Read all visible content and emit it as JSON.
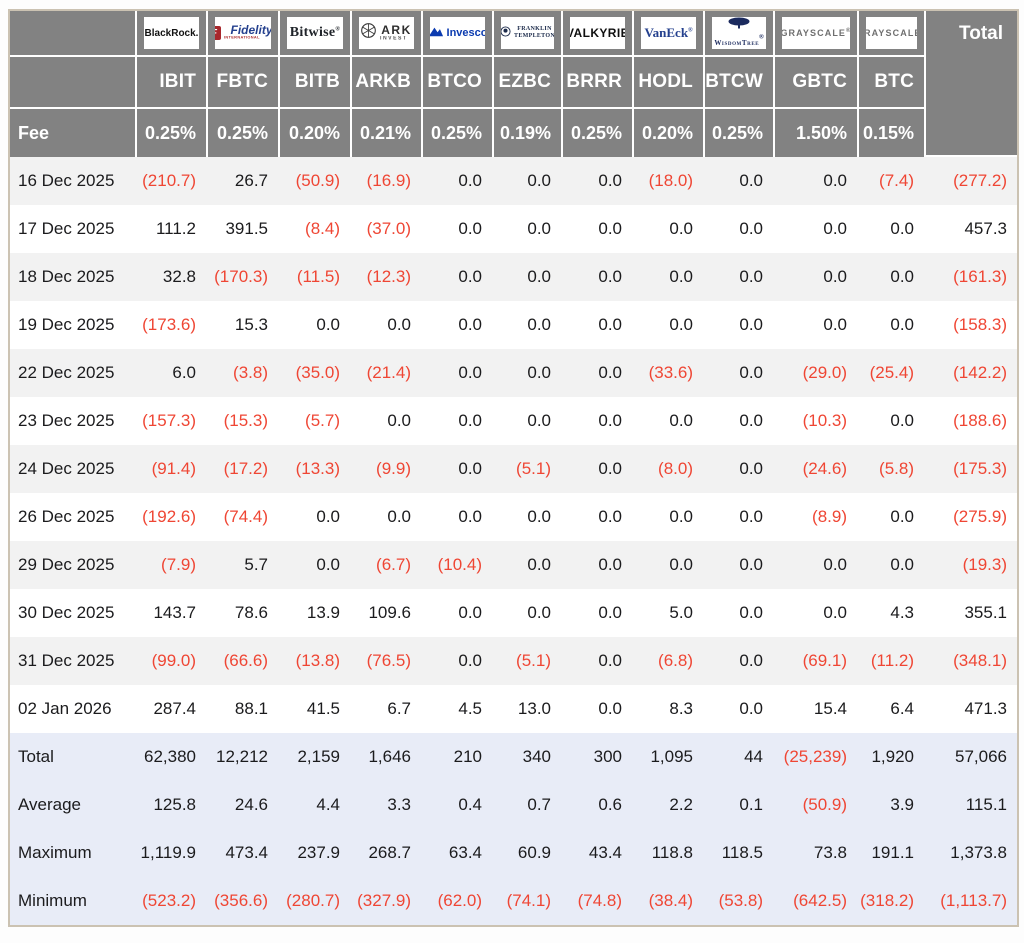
{
  "table": {
    "fee_label": "Fee",
    "total_label": "Total",
    "columns": [
      {
        "ticker": "IBIT",
        "fee": "0.25%",
        "brand": "BlackRock",
        "logo": {
          "style": "blackrock",
          "text": "BlackRock."
        }
      },
      {
        "ticker": "FBTC",
        "fee": "0.25%",
        "brand": "Fidelity",
        "logo": {
          "style": "fidelity",
          "box": "F",
          "text": "Fidelity",
          "sub": "INTERNATIONAL"
        }
      },
      {
        "ticker": "BITB",
        "fee": "0.20%",
        "brand": "Bitwise",
        "logo": {
          "style": "bitwise",
          "text": "Bitwise",
          "sub": "®"
        }
      },
      {
        "ticker": "ARKB",
        "fee": "0.21%",
        "brand": "ARK Invest",
        "logo": {
          "style": "ark",
          "line1": "ARK",
          "line2": "INVEST"
        }
      },
      {
        "ticker": "BTCO",
        "fee": "0.25%",
        "brand": "Invesco",
        "logo": {
          "style": "invesco",
          "text": "Invesco"
        }
      },
      {
        "ticker": "EZBC",
        "fee": "0.19%",
        "brand": "Franklin Templeton",
        "logo": {
          "style": "franklin",
          "line1": "FRANKLIN",
          "line2": "TEMPLETON"
        }
      },
      {
        "ticker": "BRRR",
        "fee": "0.25%",
        "brand": "Valkyrie",
        "logo": {
          "style": "valkyrie",
          "text": "VALKYRIE"
        }
      },
      {
        "ticker": "HODL",
        "fee": "0.20%",
        "brand": "VanEck",
        "logo": {
          "style": "vaneck",
          "text": "VanEck",
          "sub": "®"
        }
      },
      {
        "ticker": "BTCW",
        "fee": "0.25%",
        "brand": "WisdomTree",
        "logo": {
          "style": "wisdomtree",
          "text": "WisdomTree",
          "sub": "®"
        }
      },
      {
        "ticker": "GBTC",
        "fee": "1.50%",
        "brand": "Grayscale",
        "logo": {
          "style": "grayscale",
          "text": "GRAYSCALE",
          "sub": "®"
        }
      },
      {
        "ticker": "BTC",
        "fee": "0.15%",
        "brand": "Grayscale",
        "logo": {
          "style": "grayscale",
          "text": "GRAYSCALE",
          "sub": "®"
        }
      }
    ],
    "rows": [
      {
        "label": "16 Dec 2025",
        "values": [
          "(210.7)",
          "26.7",
          "(50.9)",
          "(16.9)",
          "0.0",
          "0.0",
          "0.0",
          "(18.0)",
          "0.0",
          "0.0",
          "(7.4)",
          "(277.2)"
        ]
      },
      {
        "label": "17 Dec 2025",
        "values": [
          "111.2",
          "391.5",
          "(8.4)",
          "(37.0)",
          "0.0",
          "0.0",
          "0.0",
          "0.0",
          "0.0",
          "0.0",
          "0.0",
          "457.3"
        ]
      },
      {
        "label": "18 Dec 2025",
        "values": [
          "32.8",
          "(170.3)",
          "(11.5)",
          "(12.3)",
          "0.0",
          "0.0",
          "0.0",
          "0.0",
          "0.0",
          "0.0",
          "0.0",
          "(161.3)"
        ]
      },
      {
        "label": "19 Dec 2025",
        "values": [
          "(173.6)",
          "15.3",
          "0.0",
          "0.0",
          "0.0",
          "0.0",
          "0.0",
          "0.0",
          "0.0",
          "0.0",
          "0.0",
          "(158.3)"
        ]
      },
      {
        "label": "22 Dec 2025",
        "values": [
          "6.0",
          "(3.8)",
          "(35.0)",
          "(21.4)",
          "0.0",
          "0.0",
          "0.0",
          "(33.6)",
          "0.0",
          "(29.0)",
          "(25.4)",
          "(142.2)"
        ]
      },
      {
        "label": "23 Dec 2025",
        "values": [
          "(157.3)",
          "(15.3)",
          "(5.7)",
          "0.0",
          "0.0",
          "0.0",
          "0.0",
          "0.0",
          "0.0",
          "(10.3)",
          "0.0",
          "(188.6)"
        ]
      },
      {
        "label": "24 Dec 2025",
        "values": [
          "(91.4)",
          "(17.2)",
          "(13.3)",
          "(9.9)",
          "0.0",
          "(5.1)",
          "0.0",
          "(8.0)",
          "0.0",
          "(24.6)",
          "(5.8)",
          "(175.3)"
        ]
      },
      {
        "label": "26 Dec 2025",
        "values": [
          "(192.6)",
          "(74.4)",
          "0.0",
          "0.0",
          "0.0",
          "0.0",
          "0.0",
          "0.0",
          "0.0",
          "(8.9)",
          "0.0",
          "(275.9)"
        ]
      },
      {
        "label": "29 Dec 2025",
        "values": [
          "(7.9)",
          "5.7",
          "0.0",
          "(6.7)",
          "(10.4)",
          "0.0",
          "0.0",
          "0.0",
          "0.0",
          "0.0",
          "0.0",
          "(19.3)"
        ]
      },
      {
        "label": "30 Dec 2025",
        "values": [
          "143.7",
          "78.6",
          "13.9",
          "109.6",
          "0.0",
          "0.0",
          "0.0",
          "5.0",
          "0.0",
          "0.0",
          "4.3",
          "355.1"
        ]
      },
      {
        "label": "31 Dec 2025",
        "values": [
          "(99.0)",
          "(66.6)",
          "(13.8)",
          "(76.5)",
          "0.0",
          "(5.1)",
          "0.0",
          "(6.8)",
          "0.0",
          "(69.1)",
          "(11.2)",
          "(348.1)"
        ]
      },
      {
        "label": "02 Jan 2026",
        "values": [
          "287.4",
          "88.1",
          "41.5",
          "6.7",
          "4.5",
          "13.0",
          "0.0",
          "8.3",
          "0.0",
          "15.4",
          "6.4",
          "471.3"
        ]
      }
    ],
    "summary": [
      {
        "label": "Total",
        "values": [
          "62,380",
          "12,212",
          "2,159",
          "1,646",
          "210",
          "340",
          "300",
          "1,095",
          "44",
          "(25,239)",
          "1,920",
          "57,066"
        ]
      },
      {
        "label": "Average",
        "values": [
          "125.8",
          "24.6",
          "4.4",
          "3.3",
          "0.4",
          "0.7",
          "0.6",
          "2.2",
          "0.1",
          "(50.9)",
          "3.9",
          "115.1"
        ]
      },
      {
        "label": "Maximum",
        "values": [
          "1,119.9",
          "473.4",
          "237.9",
          "268.7",
          "63.4",
          "60.9",
          "43.4",
          "118.8",
          "118.5",
          "73.8",
          "191.1",
          "1,373.8"
        ]
      },
      {
        "label": "Minimum",
        "values": [
          "(523.2)",
          "(356.6)",
          "(280.7)",
          "(327.9)",
          "(62.0)",
          "(74.1)",
          "(74.8)",
          "(38.4)",
          "(53.8)",
          "(642.5)",
          "(318.2)",
          "(1,113.7)"
        ]
      }
    ]
  },
  "colors": {
    "header_bg": "#828282",
    "header_text": "#ffffff",
    "row_stripe": "#f2f2f2",
    "summary_bg": "#e8ecf7",
    "negative": "#ef4634",
    "text": "#1b1b1d",
    "table_border": "#cbc2b2"
  }
}
